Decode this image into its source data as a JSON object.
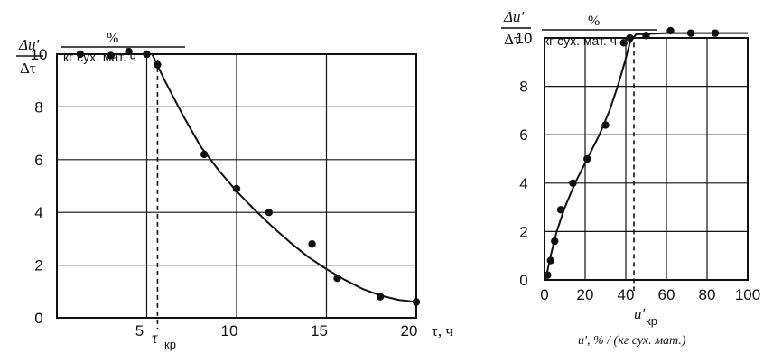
{
  "chart_data": [
    {
      "type": "scatter",
      "title": "",
      "ylabel_numerator": "Δu'",
      "ylabel_denominator": "Δτ",
      "unit_numerator": "%",
      "unit_denominator": "кг сух. мат. ч",
      "xlabel": "τ, ч",
      "critical_label": "τ",
      "critical_subscript": "кр",
      "critical_x": 5.6,
      "xlim": [
        0,
        20
      ],
      "ylim": [
        0,
        10
      ],
      "x_ticks": [
        "5",
        "10",
        "15",
        "20"
      ],
      "y_ticks": [
        "0",
        "2",
        "4",
        "6",
        "8",
        "10"
      ],
      "grid": true,
      "points": [
        {
          "x": 1.3,
          "y": 10.0
        },
        {
          "x": 3.0,
          "y": 9.95
        },
        {
          "x": 4.0,
          "y": 10.1
        },
        {
          "x": 5.0,
          "y": 10.0
        },
        {
          "x": 5.6,
          "y": 9.6
        },
        {
          "x": 8.2,
          "y": 6.2
        },
        {
          "x": 10.0,
          "y": 4.9
        },
        {
          "x": 11.8,
          "y": 4.0
        },
        {
          "x": 14.2,
          "y": 2.8
        },
        {
          "x": 15.6,
          "y": 1.5
        },
        {
          "x": 18.0,
          "y": 0.8
        },
        {
          "x": 20.0,
          "y": 0.6
        }
      ],
      "curve": [
        {
          "x": 0,
          "y": 10.0
        },
        {
          "x": 5.3,
          "y": 10.0
        },
        {
          "x": 6.0,
          "y": 9.0
        },
        {
          "x": 7.0,
          "y": 7.7
        },
        {
          "x": 8.0,
          "y": 6.5
        },
        {
          "x": 9.0,
          "y": 5.6
        },
        {
          "x": 10.0,
          "y": 4.8
        },
        {
          "x": 11.0,
          "y": 4.1
        },
        {
          "x": 12.0,
          "y": 3.45
        },
        {
          "x": 13.0,
          "y": 2.85
        },
        {
          "x": 14.0,
          "y": 2.3
        },
        {
          "x": 15.0,
          "y": 1.85
        },
        {
          "x": 16.0,
          "y": 1.45
        },
        {
          "x": 17.0,
          "y": 1.1
        },
        {
          "x": 18.0,
          "y": 0.85
        },
        {
          "x": 19.0,
          "y": 0.68
        },
        {
          "x": 20.0,
          "y": 0.6
        }
      ]
    },
    {
      "type": "scatter",
      "title": "",
      "ylabel_numerator": "Δu'",
      "ylabel_denominator": "Δτ",
      "unit_numerator": "%",
      "unit_denominator": "кг сух. мат. ч",
      "xlabel": "u', % / (кг сух. мат.)",
      "critical_label": "u'",
      "critical_subscript": "кр",
      "critical_x": 44,
      "xlim": [
        0,
        100
      ],
      "ylim": [
        0,
        10
      ],
      "x_ticks": [
        "0",
        "20",
        "40",
        "60",
        "80",
        "100"
      ],
      "y_ticks": [
        "0",
        "2",
        "4",
        "6",
        "8",
        "10"
      ],
      "grid": true,
      "points": [
        {
          "x": 1.5,
          "y": 0.2
        },
        {
          "x": 3,
          "y": 0.8
        },
        {
          "x": 5,
          "y": 1.6
        },
        {
          "x": 8,
          "y": 2.9
        },
        {
          "x": 14,
          "y": 4.0
        },
        {
          "x": 21,
          "y": 5.0
        },
        {
          "x": 30,
          "y": 6.4
        },
        {
          "x": 39,
          "y": 9.8
        },
        {
          "x": 42,
          "y": 10.0
        },
        {
          "x": 50,
          "y": 10.1
        },
        {
          "x": 62,
          "y": 10.3
        },
        {
          "x": 72,
          "y": 10.2
        },
        {
          "x": 84,
          "y": 10.2
        }
      ],
      "curve": [
        {
          "x": 0.5,
          "y": 0.0
        },
        {
          "x": 3,
          "y": 1.0
        },
        {
          "x": 6,
          "y": 2.0
        },
        {
          "x": 10,
          "y": 3.0
        },
        {
          "x": 15,
          "y": 4.0
        },
        {
          "x": 21,
          "y": 5.0
        },
        {
          "x": 27,
          "y": 6.0
        },
        {
          "x": 32,
          "y": 7.0
        },
        {
          "x": 36,
          "y": 8.0
        },
        {
          "x": 39.5,
          "y": 9.0
        },
        {
          "x": 42,
          "y": 9.8
        },
        {
          "x": 45,
          "y": 10.15
        },
        {
          "x": 60,
          "y": 10.2
        },
        {
          "x": 100,
          "y": 10.2
        }
      ]
    }
  ]
}
